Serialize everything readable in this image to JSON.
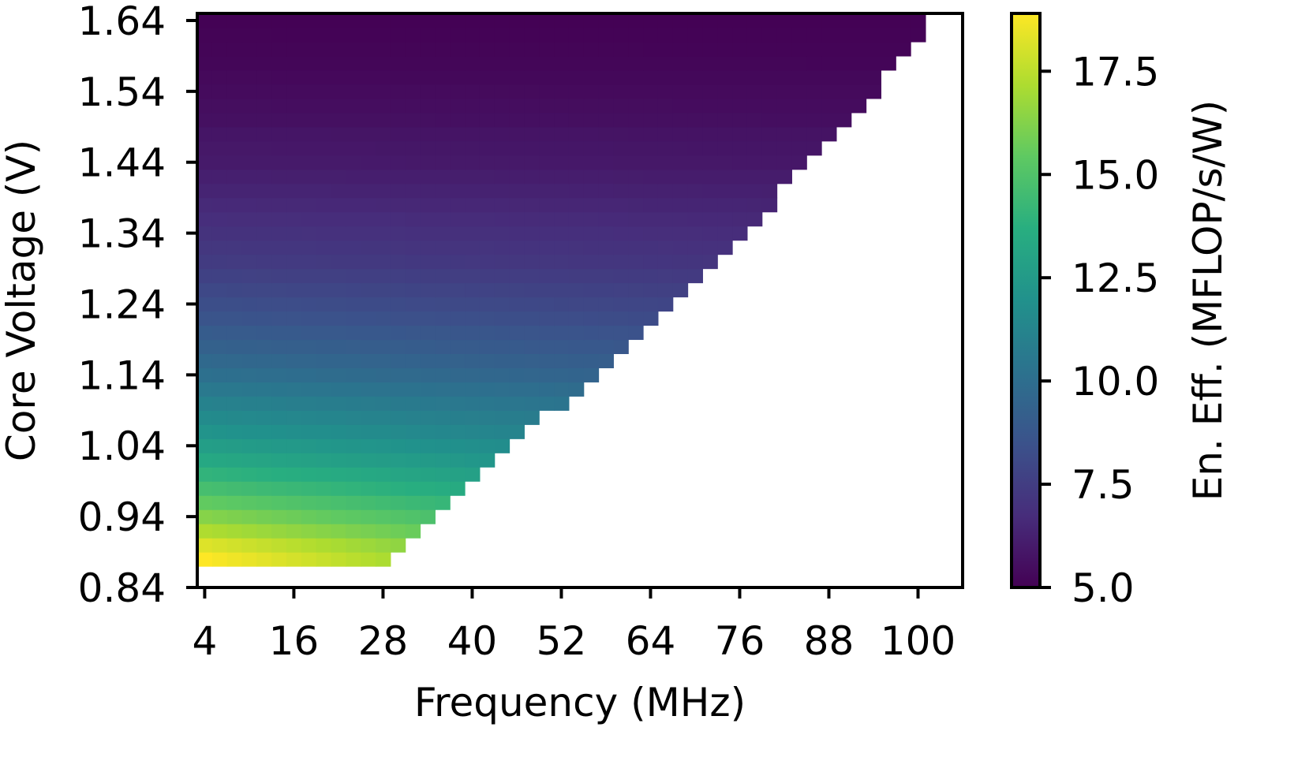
{
  "chart_data": {
    "type": "heatmap",
    "title": "",
    "xlabel": "Frequency (MHz)",
    "ylabel": "Core Voltage (V)",
    "colorbar_label": "En. Eff. (MFLOP/s/W)",
    "colormap": "viridis",
    "x_ticks": [
      "4",
      "16",
      "28",
      "40",
      "52",
      "64",
      "76",
      "88",
      "100"
    ],
    "y_ticks": [
      "1.64",
      "1.54",
      "1.44",
      "1.34",
      "1.24",
      "1.14",
      "1.04",
      "0.94",
      "0.84"
    ],
    "colorbar_ticks": [
      "17.5",
      "15.0",
      "12.5",
      "10.0",
      "7.5",
      "5.0"
    ],
    "xlim": [
      3,
      106
    ],
    "ylim": [
      0.84,
      1.65
    ],
    "colorbar_range": [
      5.0,
      18.9
    ],
    "x_step": 2,
    "y_step": 0.02,
    "x_start": 4,
    "y_start": 0.88,
    "y_count": 39,
    "max_frequency_per_voltage": [
      28,
      30,
      32,
      34,
      36,
      38,
      40,
      42,
      44,
      46,
      48,
      52,
      54,
      56,
      58,
      60,
      62,
      64,
      66,
      68,
      70,
      72,
      74,
      76,
      78,
      80,
      80,
      82,
      84,
      86,
      88,
      90,
      92,
      94,
      94,
      96,
      98,
      100,
      100
    ],
    "efficiency_endpoints": {
      "low_freq_by_voltage": [
        18.9,
        18.2,
        17.2,
        16.3,
        15.5,
        14.7,
        14.0,
        13.3,
        12.7,
        12.1,
        11.6,
        11.1,
        10.6,
        10.1,
        9.7,
        9.3,
        9.0,
        8.6,
        8.3,
        8.0,
        7.7,
        7.4,
        7.2,
        7.0,
        6.8,
        6.6,
        6.4,
        6.2,
        6.0,
        5.9,
        5.8,
        5.6,
        5.5,
        5.4,
        5.3,
        5.2,
        5.15,
        5.1,
        5.05
      ],
      "high_freq_drop": 0.8
    }
  }
}
